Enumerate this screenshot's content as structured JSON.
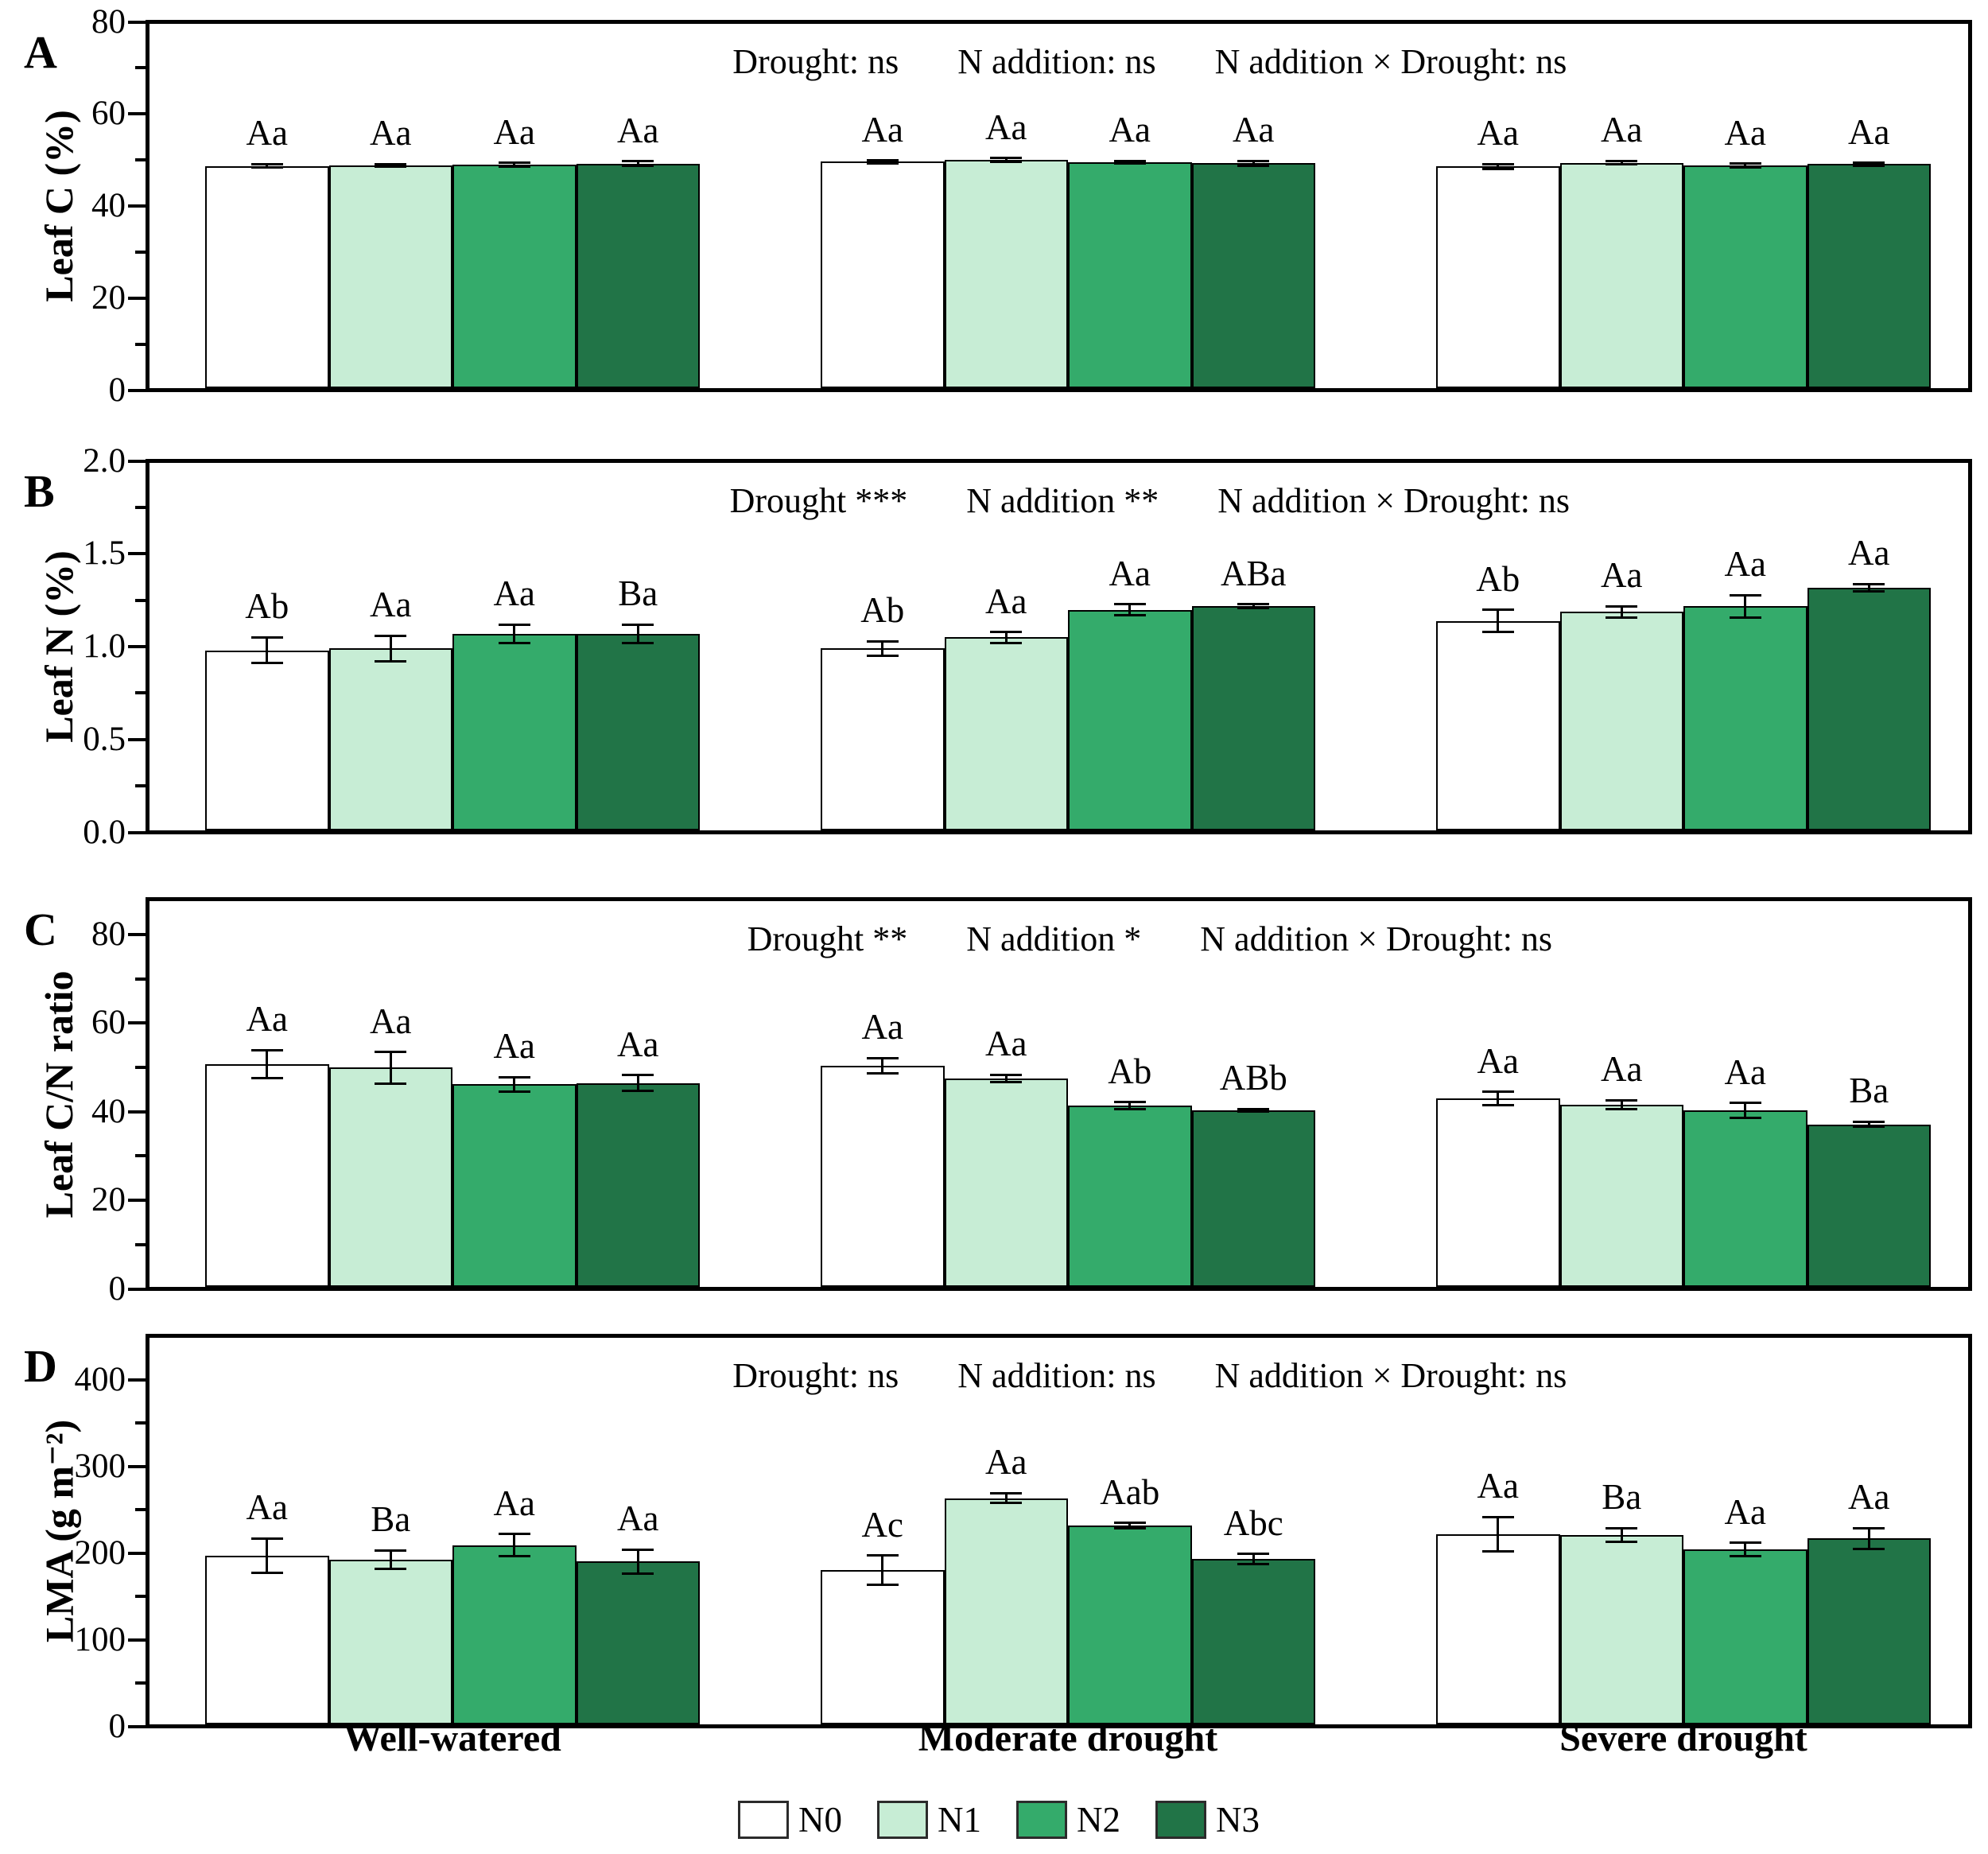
{
  "chart_data": [
    {
      "type": "bar",
      "panel_letter": "A",
      "ylabel": "Leaf C (%)",
      "ylim": [
        0,
        80
      ],
      "yticks": [
        "0",
        "20",
        "40",
        "60",
        "80"
      ],
      "ytick_values": [
        0,
        20,
        40,
        60,
        80
      ],
      "minor_step": 10,
      "grid": "off",
      "annotation": {
        "drought": "Drought: ns",
        "n_addition": "N addition: ns",
        "interaction": "N addition × Drought: ns"
      },
      "categories": [
        "Well-watered",
        "Moderate drought",
        "Severe drought"
      ],
      "series": [
        {
          "name": "N0",
          "color": "#ffffff",
          "values": [
            48.8,
            49.7,
            48.7
          ],
          "errors": [
            0.4,
            0.3,
            0.5
          ],
          "sig_labels": [
            "Aa",
            "Aa",
            "Aa"
          ]
        },
        {
          "name": "N1",
          "color": "#c7edd5",
          "values": [
            48.9,
            50.1,
            49.5
          ],
          "errors": [
            0.3,
            0.4,
            0.4
          ],
          "sig_labels": [
            "Aa",
            "Aa",
            "Aa"
          ]
        },
        {
          "name": "N2",
          "color": "#34ab6b",
          "values": [
            49.1,
            49.6,
            48.9
          ],
          "errors": [
            0.4,
            0.3,
            0.4
          ],
          "sig_labels": [
            "Aa",
            "Aa",
            "Aa"
          ]
        },
        {
          "name": "N3",
          "color": "#217447",
          "values": [
            49.3,
            49.4,
            49.2
          ],
          "errors": [
            0.5,
            0.5,
            0.3
          ],
          "sig_labels": [
            "Aa",
            "Aa",
            "Aa"
          ]
        }
      ]
    },
    {
      "type": "bar",
      "panel_letter": "B",
      "ylabel": "Leaf N (%)",
      "ylim": [
        0,
        2.0
      ],
      "yticks": [
        "0.0",
        "0.5",
        "1.0",
        "1.5",
        "2.0"
      ],
      "ytick_values": [
        0,
        0.5,
        1.0,
        1.5,
        2.0
      ],
      "minor_step": 0.25,
      "grid": "off",
      "annotation": {
        "drought": "Drought ***",
        "n_addition": "N addition **",
        "interaction": "N addition × Drought: ns"
      },
      "categories": [
        "Well-watered",
        "Moderate drought",
        "Severe drought"
      ],
      "series": [
        {
          "name": "N0",
          "color": "#ffffff",
          "values": [
            0.98,
            0.99,
            1.14
          ],
          "errors": [
            0.07,
            0.04,
            0.06
          ],
          "sig_labels": [
            "Ab",
            "Ab",
            "Ab"
          ]
        },
        {
          "name": "N1",
          "color": "#c7edd5",
          "values": [
            0.99,
            1.05,
            1.19
          ],
          "errors": [
            0.07,
            0.03,
            0.03
          ],
          "sig_labels": [
            "Aa",
            "Aa",
            "Aa"
          ]
        },
        {
          "name": "N2",
          "color": "#34ab6b",
          "values": [
            1.07,
            1.2,
            1.22
          ],
          "errors": [
            0.05,
            0.03,
            0.06
          ],
          "sig_labels": [
            "Aa",
            "Aa",
            "Aa"
          ]
        },
        {
          "name": "N3",
          "color": "#217447",
          "values": [
            1.07,
            1.22,
            1.32
          ],
          "errors": [
            0.05,
            0.01,
            0.02
          ],
          "sig_labels": [
            "Ba",
            "ABa",
            "Aa"
          ]
        }
      ]
    },
    {
      "type": "bar",
      "panel_letter": "C",
      "ylabel": "Leaf C/N ratio",
      "ylim": [
        0,
        88
      ],
      "yticks": [
        "0",
        "20",
        "40",
        "60",
        "80"
      ],
      "ytick_values": [
        0,
        20,
        40,
        60,
        80
      ],
      "minor_step": 10,
      "grid": "off",
      "annotation": {
        "drought": "Drought **",
        "n_addition": "N addition *",
        "interaction": "N addition × Drought: ns"
      },
      "categories": [
        "Well-watered",
        "Moderate drought",
        "Severe drought"
      ],
      "series": [
        {
          "name": "N0",
          "color": "#ffffff",
          "values": [
            50.8,
            50.5,
            43.0
          ],
          "errors": [
            3.2,
            1.7,
            1.5
          ],
          "sig_labels": [
            "Aa",
            "Aa",
            "Aa"
          ]
        },
        {
          "name": "N1",
          "color": "#c7edd5",
          "values": [
            50.0,
            47.6,
            41.6
          ],
          "errors": [
            3.6,
            0.8,
            1.0
          ],
          "sig_labels": [
            "Aa",
            "Aa",
            "Aa"
          ]
        },
        {
          "name": "N2",
          "color": "#34ab6b",
          "values": [
            46.2,
            41.3,
            40.3
          ],
          "errors": [
            1.7,
            0.8,
            1.7
          ],
          "sig_labels": [
            "Aa",
            "Ab",
            "Aa"
          ]
        },
        {
          "name": "N3",
          "color": "#217447",
          "values": [
            46.5,
            40.3,
            37.1
          ],
          "errors": [
            1.8,
            0.3,
            0.6
          ],
          "sig_labels": [
            "Aa",
            "ABb",
            "Ba"
          ]
        }
      ]
    },
    {
      "type": "bar",
      "panel_letter": "D",
      "ylabel": "LMA (g m⁻²)",
      "ylim": [
        0,
        451
      ],
      "yticks": [
        "0",
        "100",
        "200",
        "300",
        "400"
      ],
      "ytick_values": [
        0,
        100,
        200,
        300,
        400
      ],
      "minor_step": 50,
      "grid": "off",
      "annotation": {
        "drought": "Drought: ns",
        "n_addition": "N addition: ns",
        "interaction": "N addition × Drought: ns"
      },
      "categories": [
        "Well-watered",
        "Moderate drought",
        "Severe drought"
      ],
      "series": [
        {
          "name": "N0",
          "color": "#ffffff",
          "values": [
            197,
            180,
            222
          ],
          "errors": [
            20,
            17,
            20
          ],
          "sig_labels": [
            "Aa",
            "Ac",
            "Aa"
          ]
        },
        {
          "name": "N1",
          "color": "#c7edd5",
          "values": [
            192,
            264,
            221
          ],
          "errors": [
            11,
            6,
            8
          ],
          "sig_labels": [
            "Ba",
            "Aa",
            "Ba"
          ]
        },
        {
          "name": "N2",
          "color": "#34ab6b",
          "values": [
            209,
            232,
            204
          ],
          "errors": [
            13,
            3,
            8
          ],
          "sig_labels": [
            "Aa",
            "Aab",
            "Aa"
          ]
        },
        {
          "name": "N3",
          "color": "#217447",
          "values": [
            190,
            193,
            217
          ],
          "errors": [
            14,
            6,
            12
          ],
          "sig_labels": [
            "Aa",
            "Abc",
            "Aa"
          ]
        }
      ]
    }
  ],
  "x_axis": {
    "group_labels": [
      "Well-watered",
      "Moderate drought",
      "Severe drought"
    ]
  },
  "legend": {
    "position": "bottom-center",
    "items": [
      {
        "label": "N0",
        "color": "#ffffff"
      },
      {
        "label": "N1",
        "color": "#c7edd5"
      },
      {
        "label": "N2",
        "color": "#34ab6b"
      },
      {
        "label": "N3",
        "color": "#217447"
      }
    ]
  },
  "colors": {
    "frame": "#000000",
    "bar_border": "#000000",
    "text": "#000000",
    "background": "#ffffff"
  }
}
